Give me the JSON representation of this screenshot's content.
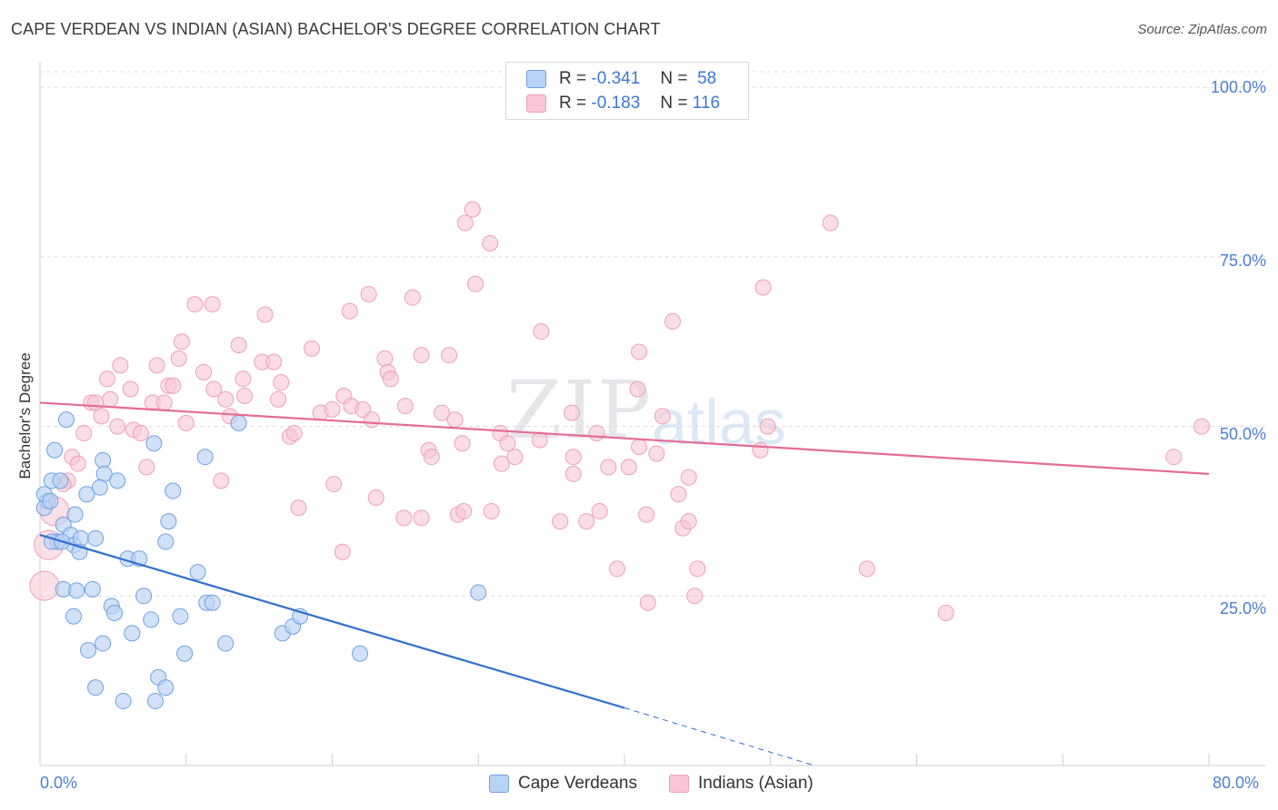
{
  "title": "CAPE VERDEAN VS INDIAN (ASIAN) BACHELOR'S DEGREE CORRELATION CHART",
  "source": "Source: ZipAtlas.com",
  "watermark": {
    "zip": "ZIP",
    "atlas": "atlas"
  },
  "legend": {
    "rows": [
      {
        "r_label": "R =",
        "r_value": "-0.341",
        "n_label": "N =",
        "n_value": "58"
      },
      {
        "r_label": "R =",
        "r_value": "-0.183",
        "n_label": "N =",
        "n_value": "116"
      }
    ]
  },
  "bottom_legend": {
    "series1": "Cape Verdeans",
    "series2": "Indians (Asian)"
  },
  "colors": {
    "blue_fill": "#b9d3f5",
    "blue_stroke": "#6fa0e3",
    "blue_line": "#2f6fd0",
    "pink_fill": "#f8c6d6",
    "pink_stroke": "#eea0b8",
    "pink_line": "#e46c96",
    "grid": "#dcdcdc",
    "tick_text": "#4a7fd0"
  },
  "chart_data": {
    "type": "scatter",
    "title": "CAPE VERDEAN VS INDIAN (ASIAN) BACHELOR'S DEGREE CORRELATION CHART",
    "xlabel": "",
    "ylabel": "Bachelor's Degree",
    "xlim": [
      0,
      80
    ],
    "ylim": [
      0,
      100
    ],
    "x_tick_labels": [
      "0.0%",
      "80.0%"
    ],
    "y_tick_labels": [
      "100.0%",
      "75.0%",
      "50.0%",
      "25.0%"
    ],
    "y_ticks": [
      100,
      75,
      50,
      25
    ],
    "grid": true,
    "series": [
      {
        "name": "Cape Verdeans",
        "r": -0.341,
        "n": 58,
        "trend": {
          "x0": 0,
          "y0": 34,
          "x1": 40,
          "y1": 8.5,
          "dashed_to_x": 53,
          "dashed_to_y": 0
        },
        "points": [
          [
            0.5,
            39
          ],
          [
            0.8,
            42
          ],
          [
            1.0,
            46.5
          ],
          [
            0.3,
            38
          ],
          [
            1.4,
            42
          ],
          [
            1.8,
            51
          ],
          [
            1.2,
            33
          ],
          [
            1.6,
            35.5
          ],
          [
            2.4,
            37
          ],
          [
            2.1,
            34
          ],
          [
            2.3,
            32.5
          ],
          [
            2.8,
            33.5
          ],
          [
            2.7,
            31.5
          ],
          [
            3.8,
            33.5
          ],
          [
            4.3,
            45
          ],
          [
            4.4,
            43
          ],
          [
            4.1,
            41
          ],
          [
            3.2,
            40
          ],
          [
            5.3,
            42
          ],
          [
            6.0,
            30.5
          ],
          [
            7.8,
            47.5
          ],
          [
            8.6,
            33
          ],
          [
            8.8,
            36
          ],
          [
            9.1,
            40.5
          ],
          [
            11.3,
            45.5
          ],
          [
            13.6,
            50.5
          ],
          [
            0.3,
            40
          ],
          [
            0.7,
            39
          ],
          [
            1.6,
            26
          ],
          [
            2.5,
            25.8
          ],
          [
            3.6,
            26
          ],
          [
            4.9,
            23.5
          ],
          [
            5.1,
            22.5
          ],
          [
            6.8,
            30.5
          ],
          [
            7.1,
            25
          ],
          [
            2.3,
            22
          ],
          [
            4.3,
            18
          ],
          [
            3.3,
            17
          ],
          [
            6.3,
            19.5
          ],
          [
            7.6,
            21.5
          ],
          [
            9.6,
            22
          ],
          [
            10.8,
            28.5
          ],
          [
            11.4,
            24
          ],
          [
            11.8,
            24
          ],
          [
            12.7,
            18
          ],
          [
            9.9,
            16.5
          ],
          [
            8.1,
            13
          ],
          [
            8.6,
            11.5
          ],
          [
            7.9,
            9.5
          ],
          [
            5.7,
            9.5
          ],
          [
            3.8,
            11.5
          ],
          [
            16.6,
            19.5
          ],
          [
            17.3,
            20.5
          ],
          [
            17.8,
            22
          ],
          [
            21.9,
            16.5
          ],
          [
            30.0,
            25.5
          ],
          [
            0.8,
            33
          ],
          [
            1.5,
            33
          ]
        ]
      },
      {
        "name": "Indians (Asian)",
        "r": -0.183,
        "n": 116,
        "trend": {
          "x0": 0,
          "y0": 53.5,
          "x1": 80,
          "y1": 43
        },
        "points": [
          [
            29.6,
            82
          ],
          [
            29.1,
            80
          ],
          [
            30.8,
            77
          ],
          [
            29.8,
            71
          ],
          [
            25.5,
            69
          ],
          [
            22.5,
            69.5
          ],
          [
            21.2,
            67
          ],
          [
            15.4,
            66.5
          ],
          [
            10.6,
            68
          ],
          [
            11.8,
            68
          ],
          [
            9.7,
            62.5
          ],
          [
            13.6,
            62
          ],
          [
            18.6,
            61.5
          ],
          [
            23.6,
            60
          ],
          [
            26.1,
            60.5
          ],
          [
            28.0,
            60.5
          ],
          [
            34.3,
            64
          ],
          [
            41.0,
            61
          ],
          [
            43.3,
            65.5
          ],
          [
            49.5,
            70.5
          ],
          [
            54.1,
            80
          ],
          [
            5.5,
            59
          ],
          [
            8.0,
            59
          ],
          [
            9.5,
            60
          ],
          [
            15.2,
            59.5
          ],
          [
            16.0,
            59.5
          ],
          [
            11.2,
            58
          ],
          [
            13.9,
            57
          ],
          [
            16.5,
            56.5
          ],
          [
            23.8,
            58
          ],
          [
            24.0,
            57
          ],
          [
            4.6,
            57
          ],
          [
            6.2,
            55.5
          ],
          [
            8.8,
            56
          ],
          [
            9.1,
            56
          ],
          [
            11.9,
            55.5
          ],
          [
            20.8,
            54.5
          ],
          [
            4.8,
            54
          ],
          [
            3.5,
            53.5
          ],
          [
            3.8,
            53.5
          ],
          [
            7.7,
            53.5
          ],
          [
            8.5,
            53.5
          ],
          [
            12.7,
            54
          ],
          [
            14.0,
            54.5
          ],
          [
            16.3,
            54
          ],
          [
            19.2,
            52
          ],
          [
            20.0,
            52.5
          ],
          [
            21.3,
            53
          ],
          [
            22.1,
            52.5
          ],
          [
            25.0,
            53
          ],
          [
            27.5,
            52
          ],
          [
            28.4,
            51
          ],
          [
            36.4,
            52
          ],
          [
            40.9,
            55.5
          ],
          [
            42.6,
            51.5
          ],
          [
            4.2,
            51.5
          ],
          [
            5.3,
            50
          ],
          [
            6.4,
            49.5
          ],
          [
            6.9,
            49
          ],
          [
            10.0,
            50.5
          ],
          [
            13.0,
            51.5
          ],
          [
            17.1,
            48.5
          ],
          [
            17.4,
            49
          ],
          [
            22.7,
            51
          ],
          [
            28.9,
            47.5
          ],
          [
            31.5,
            49
          ],
          [
            32.0,
            47.5
          ],
          [
            34.2,
            48
          ],
          [
            38.1,
            49
          ],
          [
            41.0,
            47
          ],
          [
            49.3,
            46.5
          ],
          [
            49.8,
            50
          ],
          [
            79.5,
            50
          ],
          [
            3.0,
            49
          ],
          [
            2.2,
            45.5
          ],
          [
            2.6,
            44.5
          ],
          [
            7.3,
            44
          ],
          [
            26.6,
            46.5
          ],
          [
            26.8,
            45.5
          ],
          [
            31.6,
            44.5
          ],
          [
            32.5,
            45.5
          ],
          [
            36.5,
            45.5
          ],
          [
            36.5,
            43
          ],
          [
            38.9,
            44
          ],
          [
            40.3,
            44
          ],
          [
            42.2,
            46
          ],
          [
            43.7,
            40
          ],
          [
            44.4,
            42.5
          ],
          [
            12.4,
            42
          ],
          [
            20.1,
            41.5
          ],
          [
            23.0,
            39.5
          ],
          [
            1.9,
            42
          ],
          [
            1.6,
            41.5
          ],
          [
            17.7,
            38
          ],
          [
            24.9,
            36.5
          ],
          [
            26.1,
            36.5
          ],
          [
            28.6,
            37
          ],
          [
            29.0,
            37.5
          ],
          [
            30.9,
            37.5
          ],
          [
            35.6,
            36
          ],
          [
            37.4,
            36
          ],
          [
            38.3,
            37.5
          ],
          [
            41.5,
            37
          ],
          [
            44.0,
            35
          ],
          [
            44.4,
            36
          ],
          [
            20.7,
            31.5
          ],
          [
            39.5,
            29
          ],
          [
            45.0,
            29
          ],
          [
            56.6,
            29
          ],
          [
            41.6,
            24
          ],
          [
            44.8,
            25
          ],
          [
            62.0,
            22.5
          ],
          [
            77.6,
            45.5
          ],
          [
            1.0,
            37.5
          ],
          [
            0.6,
            32.5
          ],
          [
            0.3,
            26.5
          ]
        ]
      }
    ]
  }
}
